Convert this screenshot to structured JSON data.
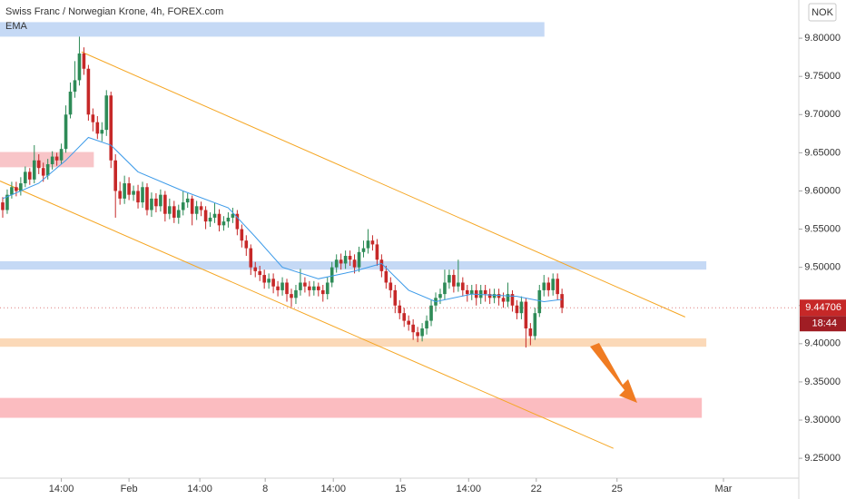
{
  "chart_data": {
    "type": "candlestick",
    "title": "Swiss Franc / Norwegian Krone, 4h, FOREX.com",
    "indicator": "EMA",
    "currency": "NOK",
    "last_price": {
      "value": 9.44706,
      "label": "9.44706"
    },
    "countdown": "18:44",
    "up_color": "#2e8b57",
    "down_color": "#c62828",
    "ema_color": "#3d9be9",
    "ylim": [
      9.224,
      9.85
    ],
    "xlim": [
      -0.6,
      176.5
    ],
    "yticks": [
      {
        "value": 9.25,
        "label": "9.25000"
      },
      {
        "value": 9.3,
        "label": "9.30000"
      },
      {
        "value": 9.35,
        "label": "9.35000"
      },
      {
        "value": 9.4,
        "label": "9.40000"
      },
      {
        "value": 9.45,
        "label": "9.45000"
      },
      {
        "value": 9.5,
        "label": "9.50000"
      },
      {
        "value": 9.55,
        "label": "9.55000"
      },
      {
        "value": 9.6,
        "label": "9.60000"
      },
      {
        "value": 9.65,
        "label": "9.65000"
      },
      {
        "value": 9.7,
        "label": "9.70000"
      },
      {
        "value": 9.75,
        "label": "9.75000"
      },
      {
        "value": 9.8,
        "label": "9.80000"
      }
    ],
    "xticks": [
      {
        "value": 13,
        "label": "14:00"
      },
      {
        "value": 28,
        "label": "Feb"
      },
      {
        "value": 43.7,
        "label": "14:00"
      },
      {
        "value": 58.2,
        "label": "8"
      },
      {
        "value": 73.3,
        "label": "14:00"
      },
      {
        "value": 88.2,
        "label": "15"
      },
      {
        "value": 103.3,
        "label": "14:00"
      },
      {
        "value": 118.3,
        "label": "22"
      },
      {
        "value": 136.2,
        "label": "25"
      },
      {
        "value": 159.8,
        "label": "Mar"
      }
    ],
    "open": [
      9.585,
      9.575,
      9.595,
      9.605,
      9.6,
      9.61,
      9.625,
      9.615,
      9.64,
      9.63,
      9.62,
      9.635,
      9.645,
      9.64,
      9.655,
      9.7,
      9.73,
      9.745,
      9.78,
      9.76,
      9.7,
      9.69,
      9.675,
      9.68,
      9.725,
      9.64,
      9.6,
      9.59,
      9.61,
      9.595,
      9.6,
      9.585,
      9.605,
      9.575,
      9.59,
      9.58,
      9.595,
      9.57,
      9.58,
      9.565,
      9.575,
      9.585,
      9.59,
      9.57,
      9.58,
      9.575,
      9.56,
      9.565,
      9.57,
      9.555,
      9.56,
      9.565,
      9.57,
      9.55,
      9.535,
      9.525,
      9.5,
      9.495,
      9.49,
      9.48,
      9.485,
      9.475,
      9.47,
      9.48,
      9.465,
      9.46,
      9.47,
      9.48,
      9.475,
      9.47,
      9.475,
      9.47,
      9.465,
      9.48,
      9.5,
      9.51,
      9.505,
      9.515,
      9.51,
      9.5,
      9.52,
      9.525,
      9.535,
      9.53,
      9.51,
      9.495,
      9.48,
      9.47,
      9.45,
      9.44,
      9.43,
      9.425,
      9.415,
      9.41,
      9.42,
      9.43,
      9.45,
      9.46,
      9.465,
      9.48,
      9.49,
      9.475,
      9.48,
      9.47,
      9.465,
      9.47,
      9.46,
      9.47,
      9.465,
      9.46,
      9.465,
      9.46,
      9.455,
      9.465,
      9.45,
      9.44,
      9.455,
      9.42,
      9.41,
      9.44,
      9.47,
      9.48,
      9.47,
      9.485,
      9.465
    ],
    "high": [
      9.592,
      9.602,
      9.612,
      9.612,
      9.618,
      9.632,
      9.63,
      9.66,
      9.648,
      9.637,
      9.642,
      9.652,
      9.65,
      9.662,
      9.712,
      9.742,
      9.77,
      9.802,
      9.788,
      9.765,
      9.708,
      9.698,
      9.69,
      9.732,
      9.73,
      9.648,
      9.612,
      9.62,
      9.618,
      9.607,
      9.608,
      9.612,
      9.61,
      9.598,
      9.597,
      9.602,
      9.6,
      9.59,
      9.587,
      9.582,
      9.6,
      9.597,
      9.594,
      9.587,
      9.586,
      9.58,
      9.572,
      9.584,
      9.576,
      9.567,
      9.572,
      9.578,
      9.575,
      9.556,
      9.542,
      9.53,
      9.507,
      9.502,
      9.497,
      9.492,
      9.492,
      9.482,
      9.487,
      9.485,
      9.472,
      9.477,
      9.498,
      9.487,
      9.482,
      9.482,
      9.48,
      9.477,
      9.487,
      9.507,
      9.517,
      9.518,
      9.522,
      9.522,
      9.517,
      9.527,
      9.535,
      9.55,
      9.542,
      9.537,
      9.517,
      9.502,
      9.487,
      9.477,
      9.457,
      9.447,
      9.437,
      9.432,
      9.422,
      9.427,
      9.437,
      9.457,
      9.467,
      9.472,
      9.497,
      9.497,
      9.497,
      9.51,
      9.487,
      9.477,
      9.477,
      9.478,
      9.477,
      9.477,
      9.472,
      9.472,
      9.472,
      9.467,
      9.48,
      9.47,
      9.457,
      9.462,
      9.46,
      9.427,
      9.447,
      9.477,
      9.49,
      9.487,
      9.492,
      9.492,
      9.472
    ],
    "low": [
      9.565,
      9.57,
      9.59,
      9.593,
      9.594,
      9.605,
      9.608,
      9.61,
      9.622,
      9.612,
      9.615,
      9.628,
      9.633,
      9.635,
      9.65,
      9.695,
      9.722,
      9.738,
      9.752,
      9.692,
      9.678,
      9.668,
      9.665,
      9.672,
      9.63,
      9.565,
      9.582,
      9.583,
      9.588,
      9.587,
      9.577,
      9.578,
      9.568,
      9.566,
      9.572,
      9.573,
      9.56,
      9.563,
      9.558,
      9.557,
      9.568,
      9.578,
      9.555,
      9.562,
      9.567,
      9.55,
      9.553,
      9.558,
      9.547,
      9.548,
      9.552,
      9.558,
      9.542,
      9.526,
      9.515,
      9.49,
      9.487,
      9.482,
      9.472,
      9.472,
      9.466,
      9.462,
      9.463,
      9.455,
      9.448,
      9.452,
      9.463,
      9.467,
      9.462,
      9.463,
      9.462,
      9.455,
      9.458,
      9.474,
      9.493,
      9.497,
      9.498,
      9.502,
      9.492,
      9.494,
      9.513,
      9.518,
      9.522,
      9.502,
      9.487,
      9.472,
      9.46,
      9.44,
      9.432,
      9.422,
      9.417,
      9.405,
      9.402,
      9.403,
      9.412,
      9.423,
      9.442,
      9.452,
      9.458,
      9.472,
      9.467,
      9.468,
      9.462,
      9.455,
      9.457,
      9.45,
      9.452,
      9.455,
      9.452,
      9.453,
      9.45,
      9.447,
      9.448,
      9.442,
      9.432,
      9.432,
      9.395,
      9.398,
      9.405,
      9.435,
      9.462,
      9.462,
      9.463,
      9.457,
      9.44
    ],
    "close": [
      9.575,
      9.595,
      9.605,
      9.6,
      9.61,
      9.625,
      9.615,
      9.64,
      9.63,
      9.62,
      9.635,
      9.645,
      9.64,
      9.655,
      9.7,
      9.73,
      9.745,
      9.78,
      9.76,
      9.7,
      9.69,
      9.675,
      9.68,
      9.725,
      9.64,
      9.6,
      9.59,
      9.61,
      9.595,
      9.6,
      9.585,
      9.605,
      9.575,
      9.59,
      9.58,
      9.595,
      9.57,
      9.58,
      9.565,
      9.575,
      9.585,
      9.59,
      9.57,
      9.58,
      9.575,
      9.56,
      9.565,
      9.57,
      9.555,
      9.56,
      9.565,
      9.57,
      9.55,
      9.535,
      9.525,
      9.5,
      9.495,
      9.49,
      9.48,
      9.485,
      9.475,
      9.47,
      9.48,
      9.465,
      9.46,
      9.47,
      9.48,
      9.475,
      9.47,
      9.475,
      9.47,
      9.465,
      9.48,
      9.5,
      9.51,
      9.505,
      9.515,
      9.51,
      9.5,
      9.52,
      9.525,
      9.535,
      9.53,
      9.51,
      9.495,
      9.48,
      9.47,
      9.45,
      9.44,
      9.43,
      9.425,
      9.415,
      9.41,
      9.42,
      9.43,
      9.45,
      9.46,
      9.465,
      9.48,
      9.49,
      9.475,
      9.48,
      9.47,
      9.465,
      9.47,
      9.46,
      9.47,
      9.465,
      9.46,
      9.465,
      9.46,
      9.455,
      9.465,
      9.45,
      9.44,
      9.455,
      9.42,
      9.41,
      9.44,
      9.47,
      9.48,
      9.47,
      9.485,
      9.465,
      9.447
    ],
    "ema": {
      "x": [
        0,
        8,
        14,
        19,
        24,
        30,
        40,
        50,
        56,
        62,
        70,
        78,
        84,
        90,
        96,
        104,
        114,
        120,
        124
      ],
      "values": [
        9.59,
        9.61,
        9.64,
        9.67,
        9.66,
        9.625,
        9.6,
        9.578,
        9.54,
        9.5,
        9.485,
        9.495,
        9.505,
        9.47,
        9.455,
        9.465,
        9.462,
        9.455,
        9.458
      ]
    },
    "zones": [
      {
        "color": "#c5d9f5",
        "x": [
          -0.6,
          120.1
        ],
        "y": [
          9.802,
          9.821
        ]
      },
      {
        "color": "#f8c5c8",
        "x": [
          -0.6,
          20.2
        ],
        "y": [
          9.631,
          9.651
        ]
      },
      {
        "color": "#c5d9f5",
        "x": [
          -0.6,
          156
        ],
        "y": [
          9.497,
          9.508
        ]
      },
      {
        "color": "#fbd9b8",
        "x": [
          -0.6,
          156
        ],
        "y": [
          9.396,
          9.407
        ]
      },
      {
        "color": "#fbbcc0",
        "x": [
          -0.6,
          155
        ],
        "y": [
          9.303,
          9.329
        ]
      }
    ],
    "trendlines": [
      {
        "color": "#f5a623",
        "x": [
          17.5,
          151.3
        ],
        "y": [
          9.782,
          9.435
        ]
      },
      {
        "color": "#f5a623",
        "x": [
          -0.6,
          135.4
        ],
        "y": [
          9.613,
          9.263
        ]
      }
    ]
  }
}
